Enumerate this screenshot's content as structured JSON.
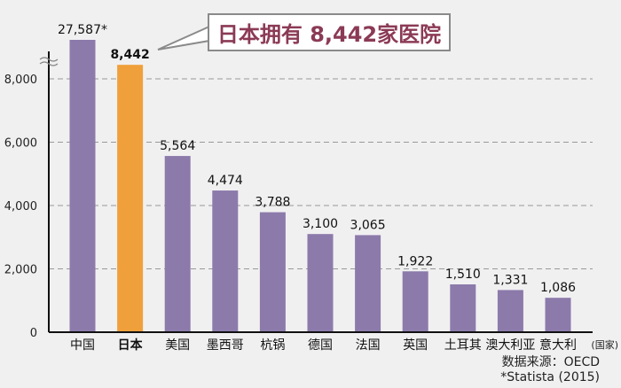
{
  "chart_data": {
    "type": "bar",
    "title": "",
    "xlabel": "(国家)",
    "ylabel": "",
    "ylim": [
      0,
      8800
    ],
    "yticks": [
      "0",
      "2,000",
      "4,000",
      "6,000",
      "8,000"
    ],
    "yticks_values": [
      0,
      2000,
      4000,
      6000,
      8000
    ],
    "axis_break": true,
    "grid": "dashed horizontal",
    "categories": [
      "中国",
      "日本",
      "美国",
      "墨西哥",
      "杭锅",
      "德国",
      "法国",
      "英国",
      "土耳其",
      "澳大利亚",
      "意大利"
    ],
    "values": [
      27587,
      8442,
      5564,
      4474,
      3788,
      3100,
      3065,
      1922,
      1510,
      1331,
      1086
    ],
    "data_labels": [
      "27,587*",
      "8,442",
      "5,564",
      "4,474",
      "3,788",
      "3,100",
      "3,065",
      "1,922",
      "1,510",
      "1,331",
      "1,086"
    ],
    "highlight_index": 1,
    "colors": {
      "default": "#8c7aab",
      "highlight": "#f0a03a",
      "grid": "#999999",
      "callout_text": "#8b3a55"
    },
    "annotation": "日本拥有 8,442家医院",
    "source_lines": [
      "数据来源：OECD",
      "*Statista (2015)"
    ]
  }
}
